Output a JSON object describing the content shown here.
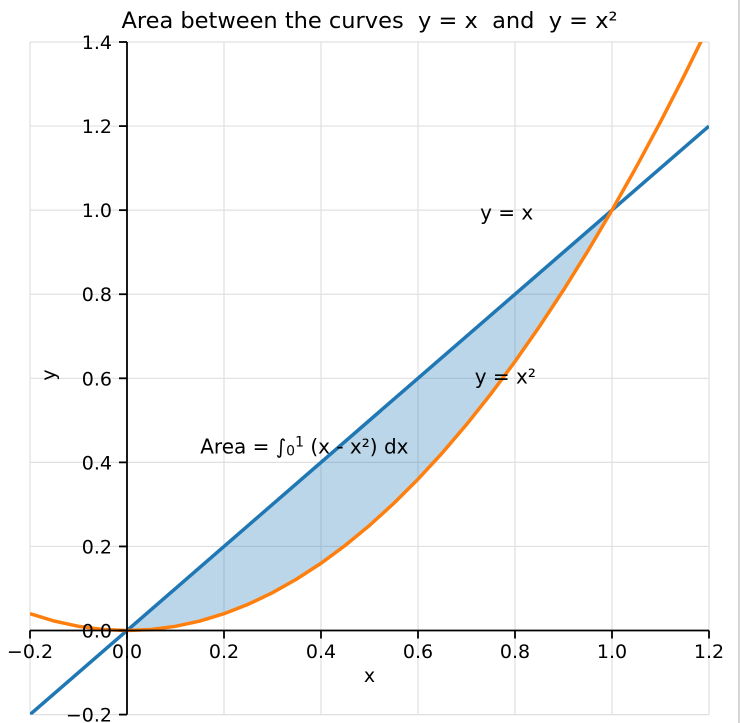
{
  "window": {
    "background": "#ffffff",
    "right_border_color": "#d6d6d6"
  },
  "chart_data": {
    "type": "line",
    "title": "Area between the curves  y = x  and  y = x²",
    "xlabel": "x",
    "ylabel": "y",
    "xlim": [
      -0.2,
      1.2
    ],
    "ylim": [
      -0.2,
      1.4
    ],
    "xticks": [
      -0.2,
      0.0,
      0.2,
      0.4,
      0.6,
      0.8,
      1.0,
      1.2
    ],
    "xtick_labels": [
      "−0.2",
      "0.0",
      "0.2",
      "0.4",
      "0.6",
      "0.8",
      "1.0",
      "1.2"
    ],
    "yticks": [
      -0.2,
      0.0,
      0.2,
      0.4,
      0.6,
      0.8,
      1.0,
      1.2,
      1.4
    ],
    "ytick_labels": [
      "−0.2",
      "0.0",
      "0.2",
      "0.4",
      "0.6",
      "0.8",
      "1.0",
      "1.2",
      "1.4"
    ],
    "grid": true,
    "grid_color": "#e0e0e0",
    "axes_style": "spines-at-zero",
    "spine_color": "#000000",
    "series": [
      {
        "name": "y = x",
        "color": "#1f77b4",
        "linewidth": 3.5,
        "points": [
          [
            -0.2,
            -0.2
          ],
          [
            1.2,
            1.2
          ]
        ]
      },
      {
        "name": "y = x²",
        "color": "#ff7f0e",
        "linewidth": 3.5,
        "points": [
          [
            -0.2,
            0.04
          ],
          [
            -0.15,
            0.0225
          ],
          [
            -0.1,
            0.01
          ],
          [
            -0.05,
            0.0025
          ],
          [
            0,
            0
          ],
          [
            0.05,
            0.0025
          ],
          [
            0.1,
            0.01
          ],
          [
            0.15,
            0.0225
          ],
          [
            0.2,
            0.04
          ],
          [
            0.25,
            0.0625
          ],
          [
            0.3,
            0.09
          ],
          [
            0.35,
            0.1225
          ],
          [
            0.4,
            0.16
          ],
          [
            0.45,
            0.2025
          ],
          [
            0.5,
            0.25
          ],
          [
            0.55,
            0.3025
          ],
          [
            0.6,
            0.36
          ],
          [
            0.65,
            0.4225
          ],
          [
            0.7,
            0.49
          ],
          [
            0.75,
            0.5625
          ],
          [
            0.8,
            0.64
          ],
          [
            0.85,
            0.7225
          ],
          [
            0.9,
            0.81
          ],
          [
            0.95,
            0.9025
          ],
          [
            1,
            1
          ],
          [
            1.05,
            1.1025
          ],
          [
            1.1,
            1.21
          ],
          [
            1.15,
            1.3225
          ],
          [
            1.2,
            1.44
          ]
        ]
      }
    ],
    "fill_between": {
      "upper": "y = x",
      "lower": "y = x²",
      "x_range": [
        0,
        1
      ],
      "color": "#1f77b4",
      "opacity": 0.3
    },
    "annotations": [
      {
        "id": "line-label",
        "text": "y = x",
        "x": 0.728,
        "y": 0.995
      },
      {
        "id": "parabola-label",
        "text": "y = x²",
        "x": 0.717,
        "y": 0.604
      },
      {
        "id": "area-label",
        "x": 0.151,
        "y": 0.438,
        "parts": {
          "pre_integral": "Area = ∫",
          "lower_limit": "0",
          "upper_limit": "1",
          "integrand": " (x - x²) dx"
        }
      }
    ]
  }
}
